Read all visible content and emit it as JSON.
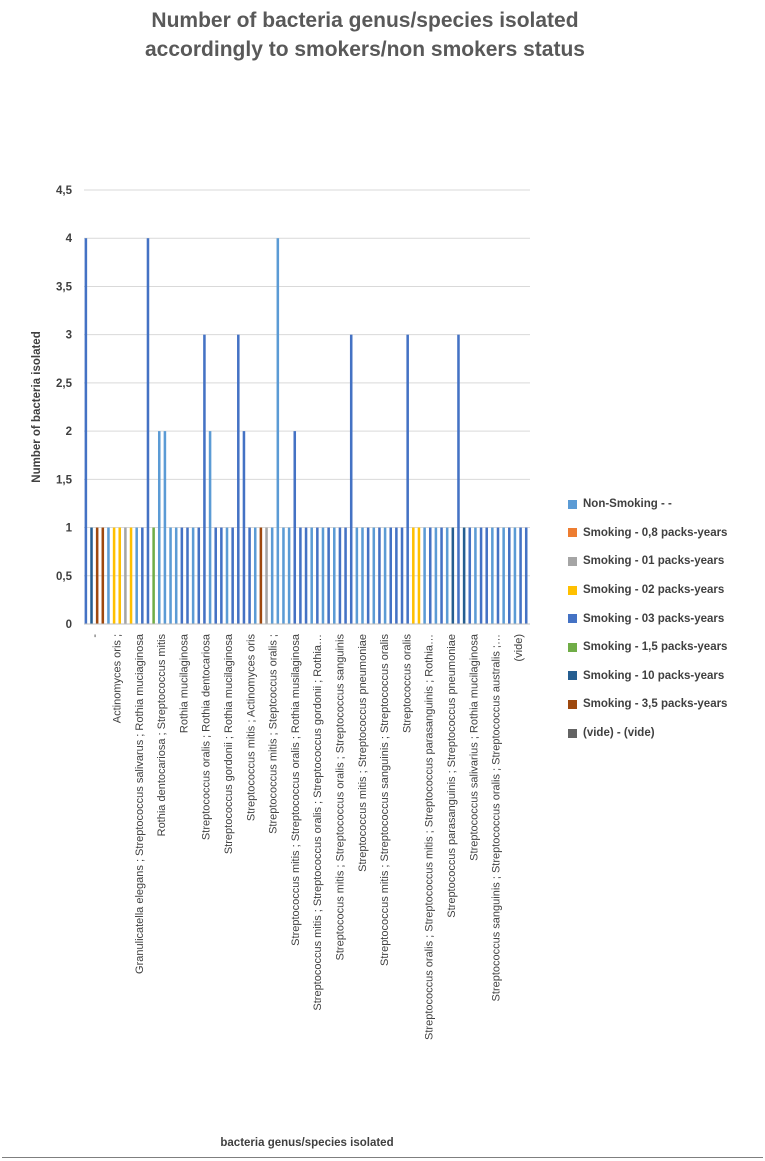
{
  "title_line1": "Number of bacteria genus/species isolated",
  "title_line2": "accordingly to smokers/non smokers status",
  "chart_data": {
    "type": "bar",
    "title": "Number of bacteria genus/species isolated accordingly to smokers/non smokers status",
    "xlabel": "bacteria genus/species isolated",
    "ylabel": "Number of bacteria isolated",
    "ylim": [
      0,
      4.5
    ],
    "yticks": [
      0,
      0.5,
      1,
      1.5,
      2,
      2.5,
      3,
      3.5,
      4,
      4.5
    ],
    "ytick_labels": [
      "0",
      "0,5",
      "1",
      "1,5",
      "2",
      "2,5",
      "3",
      "3,5",
      "4",
      "4,5"
    ],
    "grid": true,
    "legend_position": "right",
    "category_labels": [
      "-",
      "Actinomyces oris ;",
      "Granulicatella elegans ; Streptococcus salivarus ; Rothia muciaginosa",
      "Rothia dentocariosa ; Streptococcus mitis",
      "Rothia mucilaginosa",
      "Streptococcus  oralis ; Rothia dentocariosa",
      "Streptococcus gordonii ; Rothia mucilaginosa",
      "Streptococcus mitis ; Actinomyces oris",
      "Streptococcus mitis ; Steptcoccus oralis ;",
      "Streptococcus mitis ; Streptococcus oralis ; Rothia musilaginosa",
      "Streptococcus mitis ; Streptococcus oralis ; Streptococcus gordonii ; Rothia…",
      "Streptococus mitis ; Streptococcus oralis ; Streptococcus sanguinis",
      "Streptococcus mitis ; Streptococcus pneumoniae",
      "Streptococcus mitis ; Streptococcus sanguinis ; Streptococcus oralis",
      "Streptococcus oralis",
      "Streptococcus oralis ; Streptococcus mitis ; Streptococcus parasanguinis ; Rothia…",
      "Streptococcus  parasanguinis ; Streptococcus pneumoniae",
      "Streptococcus salivarius ; Rothia mucilaginosa",
      "Streptococcus sanguinis ; Streptococcus oralis ; Streptococcus australis ;…",
      "(vide)"
    ],
    "series": [
      {
        "name": "Non-Smoking - -",
        "color": "#5b9bd5"
      },
      {
        "name": "Smoking - 0,8 packs-years",
        "color": "#ed7d31"
      },
      {
        "name": "Smoking - 01 packs-years",
        "color": "#a5a5a5"
      },
      {
        "name": "Smoking - 02 packs-years",
        "color": "#ffc000"
      },
      {
        "name": "Smoking - 03 packs-years",
        "color": "#4472c4"
      },
      {
        "name": "Smoking - 1,5 packs-years",
        "color": "#70ad47"
      },
      {
        "name": "Smoking - 10 packs-years",
        "color": "#255e91"
      },
      {
        "name": "Smoking - 3,5 packs-years",
        "color": "#9e480e"
      },
      {
        "name": "(vide) - (vide)",
        "color": "#636363"
      }
    ],
    "bars": [
      {
        "v": 4,
        "s": 4
      },
      {
        "v": 1,
        "s": 6
      },
      {
        "v": 1,
        "s": 7
      },
      {
        "v": 1,
        "s": 7
      },
      {
        "v": 1,
        "s": 0
      },
      {
        "v": 1,
        "s": 3
      },
      {
        "v": 1,
        "s": 3
      },
      {
        "v": 1,
        "s": 2
      },
      {
        "v": 1,
        "s": 3
      },
      {
        "v": 1,
        "s": 0
      },
      {
        "v": 1,
        "s": 4
      },
      {
        "v": 4,
        "s": 4
      },
      {
        "v": 1,
        "s": 5
      },
      {
        "v": 2,
        "s": 0
      },
      {
        "v": 2,
        "s": 0
      },
      {
        "v": 1,
        "s": 0
      },
      {
        "v": 1,
        "s": 0
      },
      {
        "v": 1,
        "s": 4
      },
      {
        "v": 1,
        "s": 4
      },
      {
        "v": 1,
        "s": 0
      },
      {
        "v": 1,
        "s": 4
      },
      {
        "v": 3,
        "s": 4
      },
      {
        "v": 2,
        "s": 0
      },
      {
        "v": 1,
        "s": 4
      },
      {
        "v": 1,
        "s": 4
      },
      {
        "v": 1,
        "s": 0
      },
      {
        "v": 1,
        "s": 4
      },
      {
        "v": 3,
        "s": 4
      },
      {
        "v": 2,
        "s": 4
      },
      {
        "v": 1,
        "s": 4
      },
      {
        "v": 1,
        "s": 0
      },
      {
        "v": 1,
        "s": 7
      },
      {
        "v": 1,
        "s": 2
      },
      {
        "v": 1,
        "s": 0
      },
      {
        "v": 4,
        "s": 0
      },
      {
        "v": 1,
        "s": 0
      },
      {
        "v": 1,
        "s": 0
      },
      {
        "v": 2,
        "s": 4
      },
      {
        "v": 1,
        "s": 4
      },
      {
        "v": 1,
        "s": 4
      },
      {
        "v": 1,
        "s": 0
      },
      {
        "v": 1,
        "s": 4
      },
      {
        "v": 1,
        "s": 0
      },
      {
        "v": 1,
        "s": 4
      },
      {
        "v": 1,
        "s": 0
      },
      {
        "v": 1,
        "s": 4
      },
      {
        "v": 1,
        "s": 4
      },
      {
        "v": 3,
        "s": 4
      },
      {
        "v": 1,
        "s": 0
      },
      {
        "v": 1,
        "s": 0
      },
      {
        "v": 1,
        "s": 4
      },
      {
        "v": 1,
        "s": 0
      },
      {
        "v": 1,
        "s": 4
      },
      {
        "v": 1,
        "s": 0
      },
      {
        "v": 1,
        "s": 4
      },
      {
        "v": 1,
        "s": 4
      },
      {
        "v": 1,
        "s": 4
      },
      {
        "v": 3,
        "s": 4
      },
      {
        "v": 1,
        "s": 3
      },
      {
        "v": 1,
        "s": 3
      },
      {
        "v": 1,
        "s": 0
      },
      {
        "v": 1,
        "s": 4
      },
      {
        "v": 1,
        "s": 0
      },
      {
        "v": 1,
        "s": 4
      },
      {
        "v": 1,
        "s": 0
      },
      {
        "v": 1,
        "s": 6
      },
      {
        "v": 3,
        "s": 4
      },
      {
        "v": 1,
        "s": 6
      },
      {
        "v": 1,
        "s": 4
      },
      {
        "v": 1,
        "s": 0
      },
      {
        "v": 1,
        "s": 4
      },
      {
        "v": 1,
        "s": 4
      },
      {
        "v": 1,
        "s": 0
      },
      {
        "v": 1,
        "s": 4
      },
      {
        "v": 1,
        "s": 0
      },
      {
        "v": 1,
        "s": 4
      },
      {
        "v": 1,
        "s": 0
      },
      {
        "v": 1,
        "s": 4
      },
      {
        "v": 1,
        "s": 4
      }
    ]
  }
}
